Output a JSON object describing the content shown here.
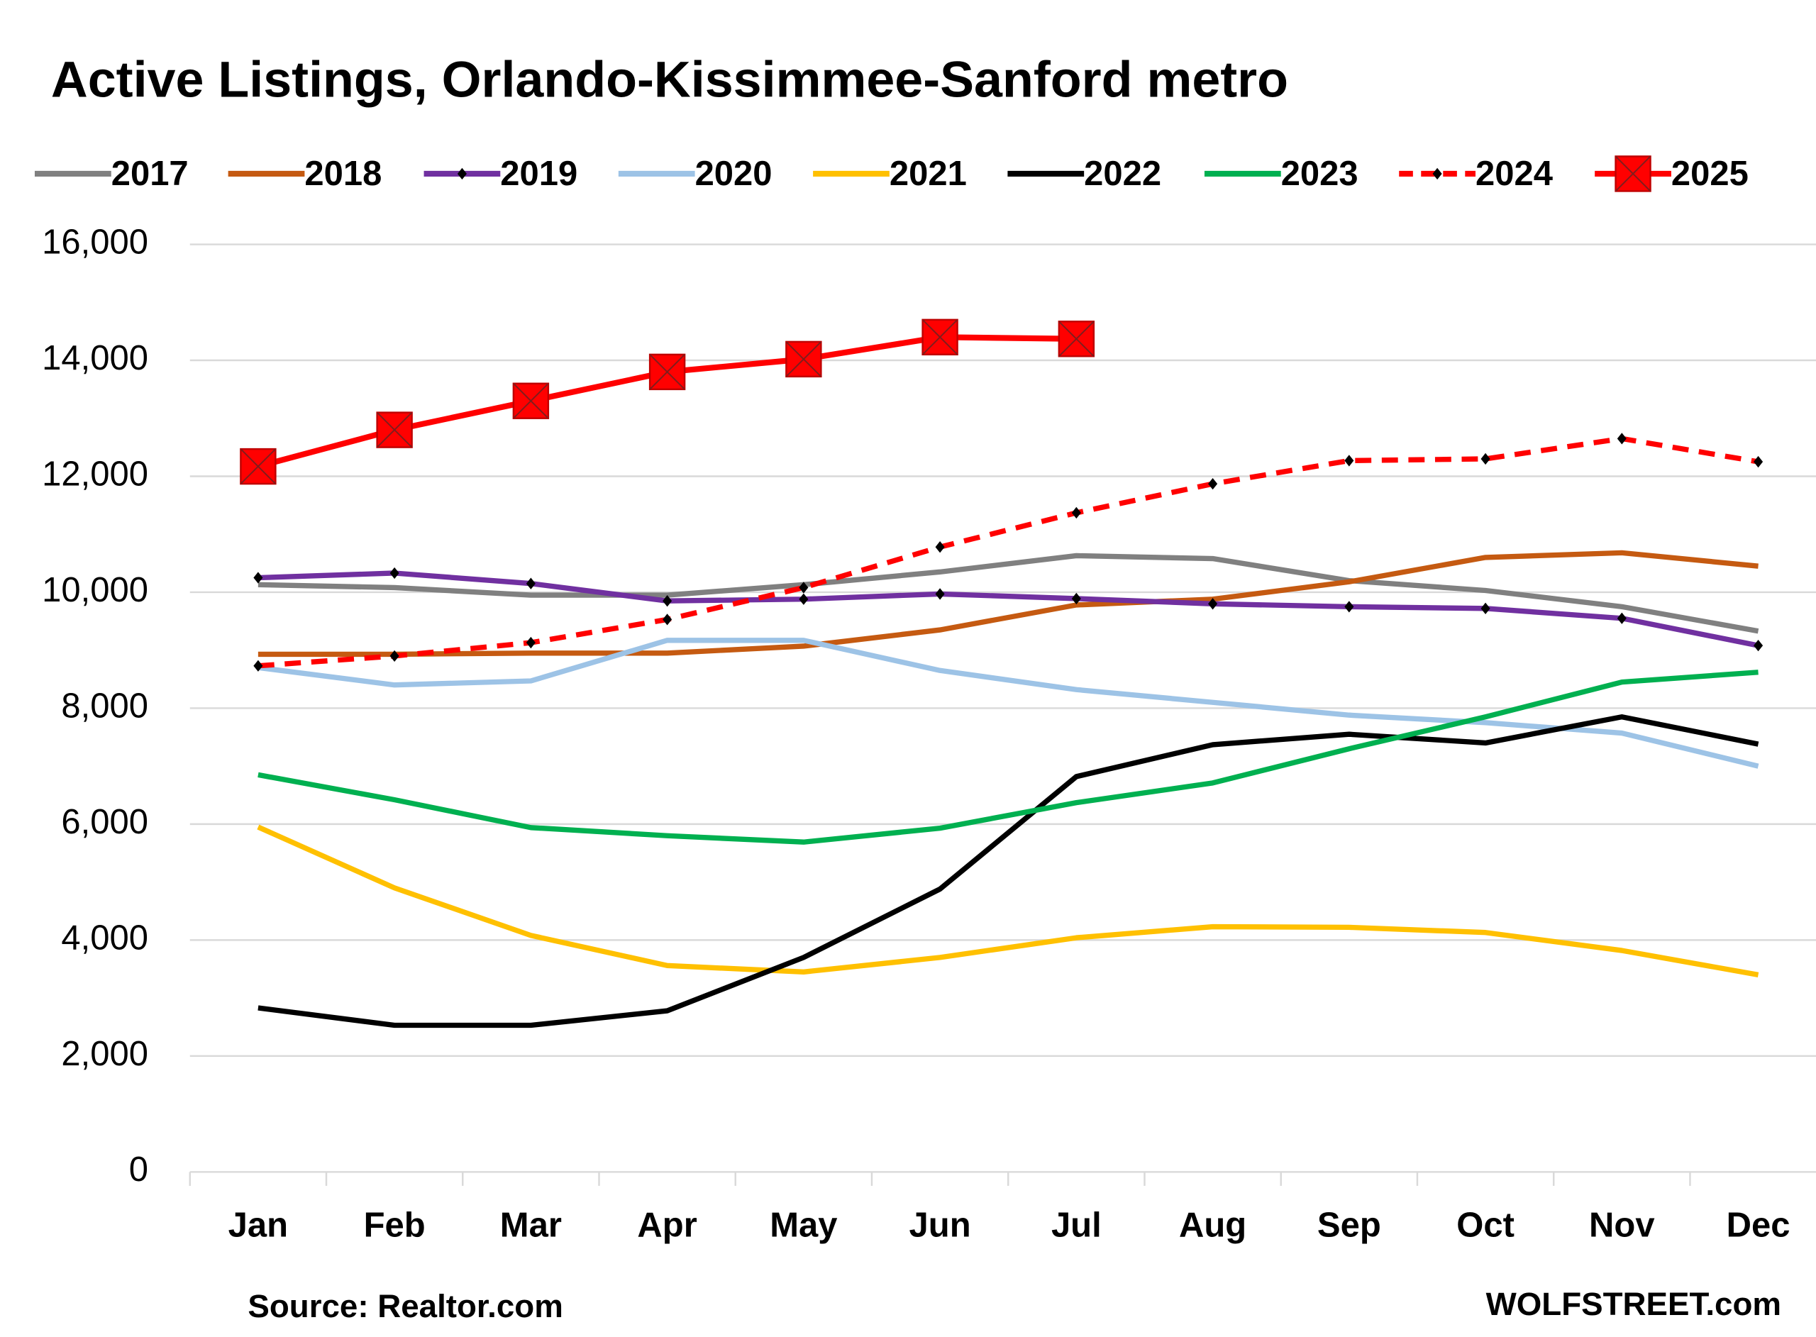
{
  "chart_data": {
    "type": "line",
    "title": "Active Listings, Orlando-Kissimmee-Sanford metro",
    "source": "Source: Realtor.com",
    "credit": "WOLFSTREET.com",
    "categories": [
      "Jan",
      "Feb",
      "Mar",
      "Apr",
      "May",
      "Jun",
      "Jul",
      "Aug",
      "Sep",
      "Oct",
      "Nov",
      "Dec"
    ],
    "ylim": [
      0,
      16000
    ],
    "yticks": [
      {
        "value": 0,
        "label": "0"
      },
      {
        "value": 2000,
        "label": "2,000"
      },
      {
        "value": 4000,
        "label": "4,000"
      },
      {
        "value": 6000,
        "label": "6,000"
      },
      {
        "value": 8000,
        "label": "8,000"
      },
      {
        "value": 10000,
        "label": "10,000"
      },
      {
        "value": 12000,
        "label": "12,000"
      },
      {
        "value": 14000,
        "label": "14,000"
      },
      {
        "value": 16000,
        "label": "16,000"
      }
    ],
    "grid": true,
    "legend": "top",
    "series": [
      {
        "name": "2017",
        "color": "#808080",
        "values": [
          10130,
          10080,
          9950,
          9950,
          10130,
          10350,
          10630,
          10580,
          10200,
          10030,
          9750,
          9330
        ]
      },
      {
        "name": "2018",
        "color": "#c55a11",
        "values": [
          8930,
          8930,
          8950,
          8950,
          9070,
          9350,
          9780,
          9880,
          10180,
          10600,
          10680,
          10450
        ]
      },
      {
        "name": "2019",
        "color": "#7030a0",
        "marker": "diamond",
        "values": [
          10250,
          10330,
          10150,
          9850,
          9880,
          9970,
          9890,
          9800,
          9750,
          9720,
          9550,
          9080
        ]
      },
      {
        "name": "2020",
        "color": "#9dc3e6",
        "values": [
          8700,
          8400,
          8470,
          9170,
          9170,
          8650,
          8320,
          8100,
          7880,
          7750,
          7570,
          7000
        ]
      },
      {
        "name": "2021",
        "color": "#ffc000",
        "values": [
          5950,
          4900,
          4080,
          3560,
          3450,
          3700,
          4040,
          4230,
          4220,
          4130,
          3820,
          3400
        ]
      },
      {
        "name": "2022",
        "color": "#000000",
        "values": [
          2830,
          2530,
          2530,
          2780,
          3700,
          4880,
          6820,
          7370,
          7550,
          7400,
          7850,
          7380
        ]
      },
      {
        "name": "2023",
        "color": "#00b050",
        "values": [
          6850,
          6420,
          5940,
          5800,
          5690,
          5930,
          6370,
          6710,
          7300,
          7850,
          8450,
          8620
        ]
      },
      {
        "name": "2024",
        "color": "#ff0000",
        "line_style": "dashed",
        "marker": "diamond",
        "values": [
          8730,
          8900,
          9130,
          9530,
          10080,
          10780,
          11370,
          11870,
          12270,
          12300,
          12650,
          12250
        ]
      },
      {
        "name": "2025",
        "color": "#ff0000",
        "marker": "square-x",
        "values": [
          12170,
          12800,
          13300,
          13800,
          14020,
          14400,
          14370,
          null,
          null,
          null,
          null,
          null
        ]
      }
    ]
  }
}
